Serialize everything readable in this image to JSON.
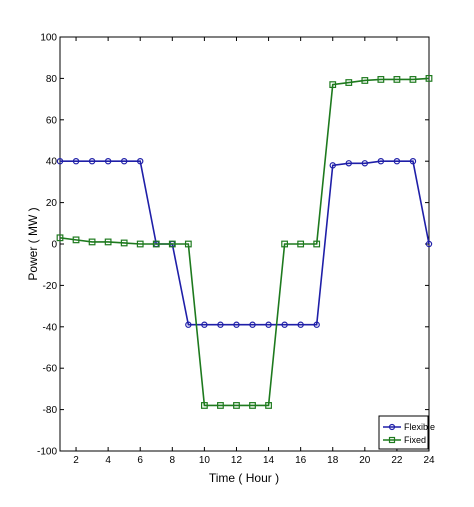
{
  "chart_data": {
    "type": "line",
    "title": "",
    "xlabel": "Time ( Hour )",
    "ylabel": "Power ( MW )",
    "xlim": [
      1,
      24
    ],
    "ylim": [
      -100,
      100
    ],
    "xticks": [
      2,
      4,
      6,
      8,
      10,
      12,
      14,
      16,
      18,
      20,
      22,
      24
    ],
    "yticks": [
      -100,
      -80,
      -60,
      -40,
      -20,
      0,
      20,
      40,
      60,
      80,
      100
    ],
    "grid": false,
    "legend_position": "bottom-right",
    "x": [
      1,
      2,
      3,
      4,
      5,
      6,
      7,
      8,
      9,
      10,
      11,
      12,
      13,
      14,
      15,
      16,
      17,
      18,
      19,
      20,
      21,
      22,
      23,
      24
    ],
    "series": [
      {
        "name": "Flexible",
        "color": "#1f1fa8",
        "marker": "circle",
        "values": [
          40,
          40,
          40,
          40,
          40,
          40,
          0,
          0,
          -39,
          -39,
          -39,
          -39,
          -39,
          -39,
          -39,
          -39,
          -39,
          38,
          39,
          39,
          40,
          40,
          40,
          0
        ]
      },
      {
        "name": "Fixed",
        "color": "#1e7a1e",
        "marker": "square",
        "values": [
          3,
          2,
          1,
          1,
          0.5,
          0,
          0,
          0,
          0,
          -78,
          -78,
          -78,
          -78,
          -78,
          0,
          0,
          0,
          77,
          78,
          79,
          79.5,
          79.5,
          79.5,
          80
        ]
      }
    ]
  }
}
